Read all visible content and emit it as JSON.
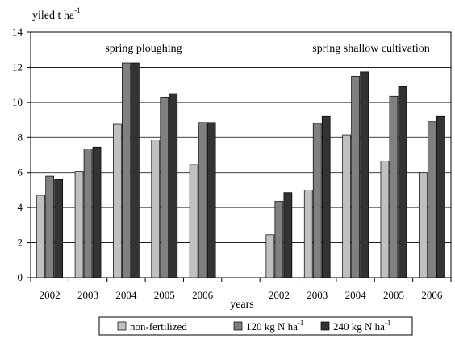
{
  "chart_data": {
    "type": "bar",
    "ylabel": "yiled t ha",
    "ylabel_sup": "-1",
    "xlabel": "years",
    "ylim": [
      0,
      14
    ],
    "y_ticks": [
      0,
      2,
      4,
      6,
      8,
      10,
      12,
      14
    ],
    "grid": "horizontal",
    "legend_position": "bottom",
    "groups": [
      {
        "label": "spring ploughing",
        "categories": [
          "2002",
          "2003",
          "2004",
          "2005",
          "2006"
        ],
        "series": [
          {
            "name": "non-fertilized",
            "values": [
              4.7,
              6.05,
              8.75,
              7.85,
              6.45
            ]
          },
          {
            "name": "120 kg N ha",
            "values": [
              5.8,
              7.35,
              12.25,
              10.3,
              8.85
            ]
          },
          {
            "name": "240 kg N ha",
            "values": [
              5.6,
              7.45,
              12.25,
              10.5,
              8.85
            ]
          }
        ]
      },
      {
        "label": "spring shallow cultivation",
        "categories": [
          "2002",
          "2003",
          "2004",
          "2005",
          "2006"
        ],
        "series": [
          {
            "name": "non-fertilized",
            "values": [
              2.45,
              5.0,
              8.15,
              6.65,
              6.0
            ]
          },
          {
            "name": "120 kg N ha",
            "values": [
              4.35,
              8.8,
              11.5,
              10.35,
              8.9
            ]
          },
          {
            "name": "240 kg N ha",
            "values": [
              4.85,
              9.2,
              11.75,
              10.9,
              9.2
            ]
          }
        ]
      }
    ],
    "legend": [
      {
        "label": "non-fertilized",
        "sup": ""
      },
      {
        "label": "120 kg N ha",
        "sup": "-1"
      },
      {
        "label": "240 kg N ha",
        "sup": "-1"
      }
    ],
    "colors": [
      "#c0c0c0",
      "#808080",
      "#333333"
    ]
  }
}
